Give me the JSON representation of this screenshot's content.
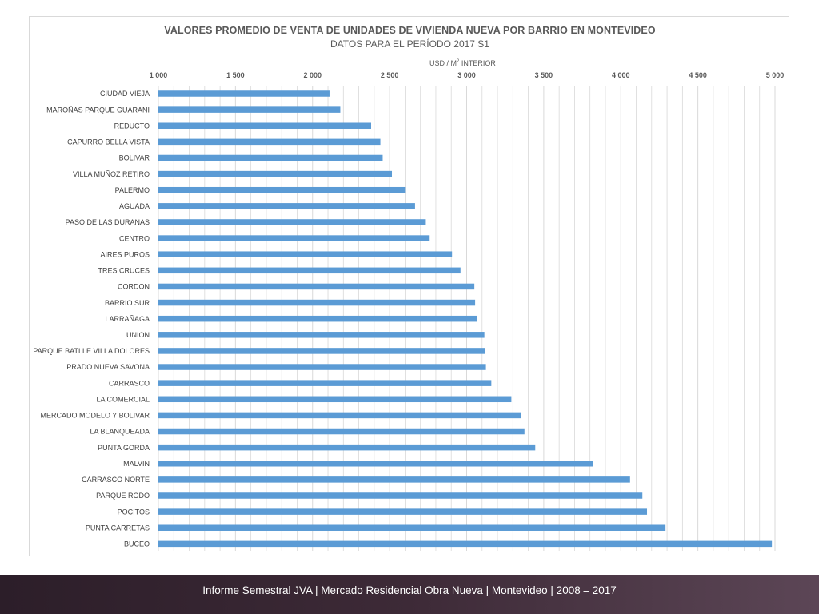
{
  "chart_data": {
    "type": "bar",
    "orientation": "horizontal",
    "title": "VALORES PROMEDIO DE VENTA DE UNIDADES DE VIVIENDA NUEVA POR BARRIO EN MONTEVIDEO",
    "subtitle": "DATOS PARA EL PERÍODO 2017 S1",
    "axis_label_main": "USD / M",
    "axis_label_sup": "2",
    "axis_label_tail": " INTERIOR",
    "xlim": [
      1000,
      5000
    ],
    "ticks": [
      1000,
      1500,
      2000,
      2500,
      3000,
      3500,
      4000,
      4500,
      5000
    ],
    "tick_labels": [
      "1 000",
      "1 500",
      "2 000",
      "2 500",
      "3 000",
      "3 500",
      "4 000",
      "4 500",
      "5 000"
    ],
    "grid": "vertical",
    "bar_color": "#5b9bd5",
    "grid_color": "#d9d9d9",
    "categories": [
      "CIUDAD VIEJA",
      "MAROÑAS PARQUE GUARANI",
      "REDUCTO",
      "CAPURRO BELLA VISTA",
      "BOLIVAR",
      "VILLA MUÑOZ RETIRO",
      "PALERMO",
      "AGUADA",
      "PASO DE LAS DURANAS",
      "CENTRO",
      "AIRES PUROS",
      "TRES CRUCES",
      "CORDON",
      "BARRIO SUR",
      "LARRAÑAGA",
      "UNION",
      "PARQUE BATLLE VILLA DOLORES",
      "PRADO NUEVA SAVONA",
      "CARRASCO",
      "LA COMERCIAL",
      "MERCADO MODELO Y BOLIVAR",
      "LA BLANQUEADA",
      "PUNTA GORDA",
      "MALVIN",
      "CARRASCO NORTE",
      "PARQUE RODO",
      "POCITOS",
      "PUNTA CARRETAS",
      "BUCEO"
    ],
    "values": [
      2110,
      2180,
      2380,
      2440,
      2455,
      2515,
      2600,
      2665,
      2735,
      2760,
      2905,
      2960,
      3050,
      3055,
      3070,
      3115,
      3120,
      3125,
      3160,
      3290,
      3355,
      3375,
      3445,
      3820,
      4060,
      4140,
      4170,
      4290,
      4980
    ]
  },
  "footer": {
    "text": "Informe Semestral JVA | Mercado Residencial Obra Nueva | Montevideo | 2008 – 2017"
  }
}
